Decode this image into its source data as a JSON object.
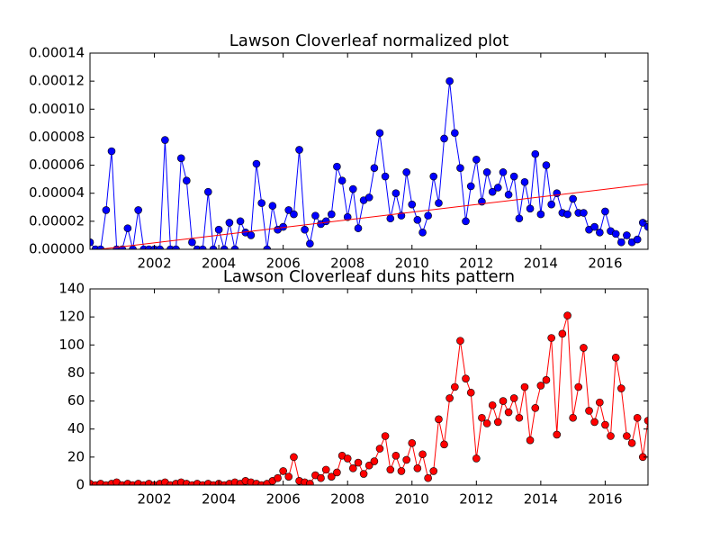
{
  "chart_data": [
    {
      "type": "line",
      "title": "Lawson Cloverleaf normalized plot",
      "color": "#0000ff",
      "x": [
        2000,
        2000.17,
        2000.33,
        2000.5,
        2000.67,
        2000.83,
        2001,
        2001.17,
        2001.33,
        2001.5,
        2001.67,
        2001.83,
        2002,
        2002.17,
        2002.33,
        2002.5,
        2002.67,
        2002.83,
        2003,
        2003.17,
        2003.33,
        2003.5,
        2003.67,
        2003.83,
        2004,
        2004.17,
        2004.33,
        2004.5,
        2004.67,
        2004.83,
        2005,
        2005.17,
        2005.33,
        2005.5,
        2005.67,
        2005.83,
        2006,
        2006.17,
        2006.33,
        2006.5,
        2006.67,
        2006.83,
        2007,
        2007.17,
        2007.33,
        2007.5,
        2007.67,
        2007.83,
        2008,
        2008.17,
        2008.33,
        2008.5,
        2008.67,
        2008.83,
        2009,
        2009.17,
        2009.33,
        2009.5,
        2009.67,
        2009.83,
        2010,
        2010.17,
        2010.33,
        2010.5,
        2010.67,
        2010.83,
        2011,
        2011.17,
        2011.33,
        2011.5,
        2011.67,
        2011.83,
        2012,
        2012.17,
        2012.33,
        2012.5,
        2012.67,
        2012.83,
        2013,
        2013.17,
        2013.33,
        2013.5,
        2013.67,
        2013.83,
        2014,
        2014.17,
        2014.33,
        2014.5,
        2014.67,
        2014.83,
        2015,
        2015.17,
        2015.33,
        2015.5,
        2015.67,
        2015.83,
        2016,
        2016.17,
        2016.33,
        2016.5,
        2016.67,
        2016.83,
        2017,
        2017.17,
        2017.33
      ],
      "values": [
        5e-06,
        0,
        0,
        2.8e-05,
        7e-05,
        0,
        0,
        1.5e-05,
        0,
        2.8e-05,
        0,
        0,
        0,
        0,
        7.8e-05,
        0,
        0,
        6.5e-05,
        4.9e-05,
        5e-06,
        0,
        0,
        4.1e-05,
        0,
        1.4e-05,
        0,
        1.9e-05,
        0,
        2e-05,
        1.2e-05,
        1e-05,
        6.1e-05,
        3.3e-05,
        0,
        3.1e-05,
        1.4e-05,
        1.6e-05,
        2.8e-05,
        2.5e-05,
        7.1e-05,
        1.4e-05,
        4e-06,
        2.4e-05,
        1.8e-05,
        2e-05,
        2.5e-05,
        5.9e-05,
        4.9e-05,
        2.3e-05,
        4.3e-05,
        1.5e-05,
        3.5e-05,
        3.7e-05,
        5.8e-05,
        8.3e-05,
        5.2e-05,
        2.2e-05,
        4e-05,
        2.4e-05,
        5.5e-05,
        3.2e-05,
        2.1e-05,
        1.2e-05,
        2.4e-05,
        5.2e-05,
        3.3e-05,
        7.9e-05,
        0.00012,
        8.3e-05,
        5.8e-05,
        2e-05,
        4.5e-05,
        6.4e-05,
        3.4e-05,
        5.5e-05,
        4.1e-05,
        4.4e-05,
        5.5e-05,
        3.9e-05,
        5.2e-05,
        2.2e-05,
        4.8e-05,
        2.9e-05,
        6.8e-05,
        2.5e-05,
        6e-05,
        3.2e-05,
        4e-05,
        2.6e-05,
        2.5e-05,
        3.6e-05,
        2.6e-05,
        2.6e-05,
        1.4e-05,
        1.6e-05,
        1.2e-05,
        2.7e-05,
        1.3e-05,
        1.1e-05,
        5e-06,
        1e-05,
        5e-06,
        7e-06,
        1.9e-05,
        1.6e-05
      ],
      "trend": {
        "color": "#ff0000",
        "x": [
          2000.3,
          2017.33
        ],
        "values": [
          0,
          4.65e-05
        ]
      },
      "xlim": [
        2000,
        2017.33
      ],
      "xticks": [
        2002,
        2004,
        2006,
        2008,
        2010,
        2012,
        2014,
        2016
      ],
      "ylim": [
        0,
        0.00014
      ],
      "yticks": [
        {
          "value": 0,
          "label": "0.00000"
        },
        {
          "value": 2e-05,
          "label": "0.00002"
        },
        {
          "value": 4e-05,
          "label": "0.00004"
        },
        {
          "value": 6e-05,
          "label": "0.00006"
        },
        {
          "value": 8e-05,
          "label": "0.00008"
        },
        {
          "value": 0.0001,
          "label": "0.00010"
        },
        {
          "value": 0.00012,
          "label": "0.00012"
        },
        {
          "value": 0.00014,
          "label": "0.00014"
        }
      ]
    },
    {
      "type": "line",
      "title": "Lawson Cloverleaf duns hits pattern",
      "color": "#ff0000",
      "x": [
        2000,
        2000.17,
        2000.33,
        2000.5,
        2000.67,
        2000.83,
        2001,
        2001.17,
        2001.33,
        2001.5,
        2001.67,
        2001.83,
        2002,
        2002.17,
        2002.33,
        2002.5,
        2002.67,
        2002.83,
        2003,
        2003.17,
        2003.33,
        2003.5,
        2003.67,
        2003.83,
        2004,
        2004.17,
        2004.33,
        2004.5,
        2004.67,
        2004.83,
        2005,
        2005.17,
        2005.33,
        2005.5,
        2005.67,
        2005.83,
        2006,
        2006.17,
        2006.33,
        2006.5,
        2006.67,
        2006.83,
        2007,
        2007.17,
        2007.33,
        2007.5,
        2007.67,
        2007.83,
        2008,
        2008.17,
        2008.33,
        2008.5,
        2008.67,
        2008.83,
        2009,
        2009.17,
        2009.33,
        2009.5,
        2009.67,
        2009.83,
        2010,
        2010.17,
        2010.33,
        2010.5,
        2010.67,
        2010.83,
        2011,
        2011.17,
        2011.33,
        2011.5,
        2011.67,
        2011.83,
        2012,
        2012.17,
        2012.33,
        2012.5,
        2012.67,
        2012.83,
        2013,
        2013.17,
        2013.33,
        2013.5,
        2013.67,
        2013.83,
        2014,
        2014.17,
        2014.33,
        2014.5,
        2014.67,
        2014.83,
        2015,
        2015.17,
        2015.33,
        2015.5,
        2015.67,
        2015.83,
        2016,
        2016.17,
        2016.33,
        2016.5,
        2016.67,
        2016.83,
        2017,
        2017.17,
        2017.33
      ],
      "values": [
        1,
        0,
        1,
        0,
        1,
        2,
        0,
        1,
        0,
        1,
        0,
        1,
        0,
        1,
        2,
        0,
        1,
        2,
        1,
        0,
        1,
        0,
        1,
        0,
        1,
        0,
        1,
        2,
        1,
        3,
        2,
        1,
        0,
        1,
        3,
        5,
        10,
        6,
        20,
        3,
        2,
        1,
        7,
        5,
        11,
        6,
        9,
        21,
        19,
        12,
        16,
        8,
        14,
        17,
        26,
        35,
        11,
        21,
        10,
        18,
        30,
        12,
        22,
        5,
        10,
        47,
        29,
        62,
        70,
        103,
        76,
        66,
        19,
        48,
        44,
        57,
        45,
        60,
        52,
        62,
        48,
        70,
        32,
        55,
        71,
        75,
        105,
        36,
        108,
        121,
        48,
        70,
        98,
        53,
        45,
        59,
        43,
        35,
        91,
        69,
        35,
        30,
        48,
        20,
        46
      ],
      "xlim": [
        2000,
        2017.33
      ],
      "xticks": [
        2002,
        2004,
        2006,
        2008,
        2010,
        2012,
        2014,
        2016
      ],
      "ylim": [
        0,
        140
      ],
      "yticks": [
        0,
        20,
        40,
        60,
        80,
        100,
        120,
        140
      ]
    }
  ]
}
